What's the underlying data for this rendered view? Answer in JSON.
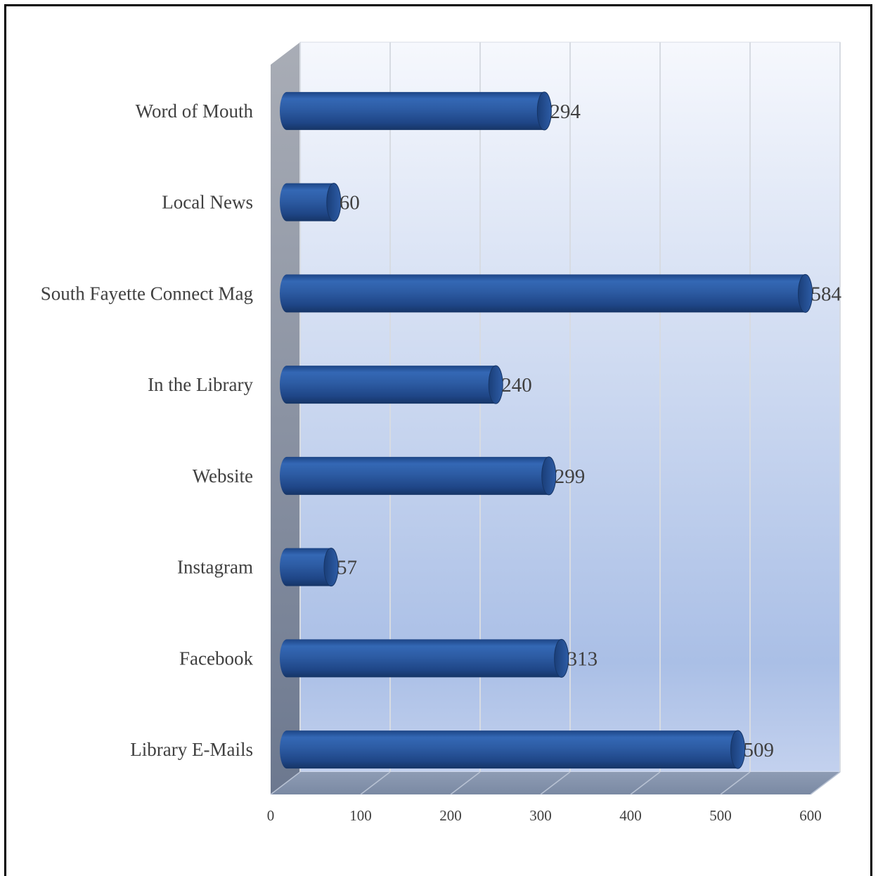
{
  "chart_data": {
    "type": "bar",
    "orientation": "horizontal",
    "style": "3d-cylinder",
    "title": "",
    "xlabel": "",
    "ylabel": "",
    "categories": [
      "Word of Mouth",
      "Local News",
      "South Fayette Connect Mag",
      "In the Library",
      "Website",
      "Instagram",
      "Facebook",
      "Library E-Mails"
    ],
    "values": [
      294,
      60,
      584,
      240,
      299,
      57,
      313,
      509
    ],
    "xlim": [
      0,
      600
    ],
    "xticks": [
      "0",
      "100",
      "200",
      "300",
      "400",
      "500",
      "600"
    ],
    "grid": true,
    "legend": "none",
    "bar_color": "#2e5ea8"
  }
}
